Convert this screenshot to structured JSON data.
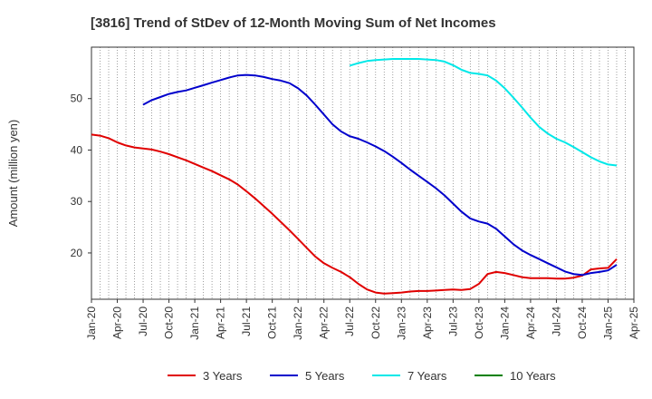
{
  "chart_data": {
    "type": "line",
    "title": "[3816]  Trend of StDev of 12-Month Moving Sum of Net Incomes",
    "ylabel": "Amount (million yen)",
    "xlabel": "",
    "ylim": [
      11,
      60
    ],
    "yticks": [
      20,
      30,
      40,
      50
    ],
    "xlim": [
      "2020-01",
      "2025-04"
    ],
    "xticks": [
      "Jan-20",
      "Apr-20",
      "Jul-20",
      "Oct-20",
      "Jan-21",
      "Apr-21",
      "Jul-21",
      "Oct-21",
      "Jan-22",
      "Apr-22",
      "Jul-22",
      "Oct-22",
      "Jan-23",
      "Apr-23",
      "Jul-23",
      "Oct-23",
      "Jan-24",
      "Apr-24",
      "Jul-24",
      "Oct-24",
      "Jan-25",
      "Apr-25"
    ],
    "grid": "vertical-dotted",
    "legend_position": "bottom",
    "series": [
      {
        "name": "3 Years",
        "color": "#e00000",
        "points": [
          [
            "2020-01",
            43.0
          ],
          [
            "2020-02",
            42.8
          ],
          [
            "2020-03",
            42.3
          ],
          [
            "2020-04",
            41.5
          ],
          [
            "2020-05",
            40.9
          ],
          [
            "2020-06",
            40.5
          ],
          [
            "2020-07",
            40.3
          ],
          [
            "2020-08",
            40.1
          ],
          [
            "2020-09",
            39.7
          ],
          [
            "2020-10",
            39.2
          ],
          [
            "2020-11",
            38.6
          ],
          [
            "2020-12",
            38.0
          ],
          [
            "2021-01",
            37.3
          ],
          [
            "2021-02",
            36.6
          ],
          [
            "2021-03",
            35.9
          ],
          [
            "2021-04",
            35.1
          ],
          [
            "2021-05",
            34.3
          ],
          [
            "2021-06",
            33.3
          ],
          [
            "2021-07",
            32.0
          ],
          [
            "2021-08",
            30.6
          ],
          [
            "2021-09",
            29.1
          ],
          [
            "2021-10",
            27.6
          ],
          [
            "2021-11",
            26.0
          ],
          [
            "2021-12",
            24.4
          ],
          [
            "2022-01",
            22.7
          ],
          [
            "2022-02",
            21.0
          ],
          [
            "2022-03",
            19.3
          ],
          [
            "2022-04",
            18.0
          ],
          [
            "2022-05",
            17.1
          ],
          [
            "2022-06",
            16.3
          ],
          [
            "2022-07",
            15.3
          ],
          [
            "2022-08",
            14.0
          ],
          [
            "2022-09",
            12.9
          ],
          [
            "2022-10",
            12.3
          ],
          [
            "2022-11",
            12.1
          ],
          [
            "2022-12",
            12.2
          ],
          [
            "2023-01",
            12.3
          ],
          [
            "2023-02",
            12.5
          ],
          [
            "2023-03",
            12.6
          ],
          [
            "2023-04",
            12.6
          ],
          [
            "2023-05",
            12.7
          ],
          [
            "2023-06",
            12.8
          ],
          [
            "2023-07",
            12.9
          ],
          [
            "2023-08",
            12.8
          ],
          [
            "2023-09",
            13.0
          ],
          [
            "2023-10",
            14.0
          ],
          [
            "2023-11",
            15.9
          ],
          [
            "2023-12",
            16.3
          ],
          [
            "2024-01",
            16.1
          ],
          [
            "2024-02",
            15.7
          ],
          [
            "2024-03",
            15.3
          ],
          [
            "2024-04",
            15.1
          ],
          [
            "2024-05",
            15.1
          ],
          [
            "2024-06",
            15.1
          ],
          [
            "2024-07",
            15.0
          ],
          [
            "2024-08",
            15.0
          ],
          [
            "2024-09",
            15.2
          ],
          [
            "2024-10",
            15.6
          ],
          [
            "2024-11",
            16.8
          ],
          [
            "2024-12",
            17.0
          ],
          [
            "2025-01",
            17.1
          ],
          [
            "2025-02",
            18.8
          ]
        ]
      },
      {
        "name": "5 Years",
        "color": "#0000cc",
        "points": [
          [
            "2020-07",
            48.8
          ],
          [
            "2020-08",
            49.7
          ],
          [
            "2020-09",
            50.3
          ],
          [
            "2020-10",
            50.9
          ],
          [
            "2020-11",
            51.3
          ],
          [
            "2020-12",
            51.6
          ],
          [
            "2021-01",
            52.1
          ],
          [
            "2021-02",
            52.6
          ],
          [
            "2021-03",
            53.1
          ],
          [
            "2021-04",
            53.6
          ],
          [
            "2021-05",
            54.1
          ],
          [
            "2021-06",
            54.5
          ],
          [
            "2021-07",
            54.6
          ],
          [
            "2021-08",
            54.5
          ],
          [
            "2021-09",
            54.2
          ],
          [
            "2021-10",
            53.8
          ],
          [
            "2021-11",
            53.5
          ],
          [
            "2021-12",
            53.0
          ],
          [
            "2022-01",
            52.0
          ],
          [
            "2022-02",
            50.6
          ],
          [
            "2022-03",
            48.8
          ],
          [
            "2022-04",
            46.9
          ],
          [
            "2022-05",
            45.0
          ],
          [
            "2022-06",
            43.6
          ],
          [
            "2022-07",
            42.7
          ],
          [
            "2022-08",
            42.2
          ],
          [
            "2022-09",
            41.5
          ],
          [
            "2022-10",
            40.7
          ],
          [
            "2022-11",
            39.8
          ],
          [
            "2022-12",
            38.7
          ],
          [
            "2023-01",
            37.5
          ],
          [
            "2023-02",
            36.2
          ],
          [
            "2023-03",
            35.0
          ],
          [
            "2023-04",
            33.8
          ],
          [
            "2023-05",
            32.6
          ],
          [
            "2023-06",
            31.2
          ],
          [
            "2023-07",
            29.6
          ],
          [
            "2023-08",
            28.0
          ],
          [
            "2023-09",
            26.7
          ],
          [
            "2023-10",
            26.1
          ],
          [
            "2023-11",
            25.7
          ],
          [
            "2023-12",
            24.7
          ],
          [
            "2024-01",
            23.2
          ],
          [
            "2024-02",
            21.7
          ],
          [
            "2024-03",
            20.5
          ],
          [
            "2024-04",
            19.6
          ],
          [
            "2024-05",
            18.8
          ],
          [
            "2024-06",
            18.0
          ],
          [
            "2024-07",
            17.2
          ],
          [
            "2024-08",
            16.4
          ],
          [
            "2024-09",
            15.9
          ],
          [
            "2024-10",
            15.7
          ],
          [
            "2024-11",
            16.1
          ],
          [
            "2024-12",
            16.3
          ],
          [
            "2025-01",
            16.6
          ],
          [
            "2025-02",
            17.7
          ]
        ]
      },
      {
        "name": "7 Years",
        "color": "#00e8e8",
        "points": [
          [
            "2022-07",
            56.4
          ],
          [
            "2022-08",
            56.9
          ],
          [
            "2022-09",
            57.3
          ],
          [
            "2022-10",
            57.5
          ],
          [
            "2022-11",
            57.6
          ],
          [
            "2022-12",
            57.7
          ],
          [
            "2023-01",
            57.7
          ],
          [
            "2023-02",
            57.7
          ],
          [
            "2023-03",
            57.7
          ],
          [
            "2023-04",
            57.6
          ],
          [
            "2023-05",
            57.5
          ],
          [
            "2023-06",
            57.2
          ],
          [
            "2023-07",
            56.5
          ],
          [
            "2023-08",
            55.6
          ],
          [
            "2023-09",
            55.0
          ],
          [
            "2023-10",
            54.8
          ],
          [
            "2023-11",
            54.5
          ],
          [
            "2023-12",
            53.5
          ],
          [
            "2024-01",
            52.0
          ],
          [
            "2024-02",
            50.2
          ],
          [
            "2024-03",
            48.3
          ],
          [
            "2024-04",
            46.3
          ],
          [
            "2024-05",
            44.5
          ],
          [
            "2024-06",
            43.2
          ],
          [
            "2024-07",
            42.2
          ],
          [
            "2024-08",
            41.5
          ],
          [
            "2024-09",
            40.6
          ],
          [
            "2024-10",
            39.6
          ],
          [
            "2024-11",
            38.6
          ],
          [
            "2024-12",
            37.8
          ],
          [
            "2025-01",
            37.2
          ],
          [
            "2025-02",
            37.0
          ]
        ]
      },
      {
        "name": "10 Years",
        "color": "#008000",
        "points": []
      }
    ]
  }
}
